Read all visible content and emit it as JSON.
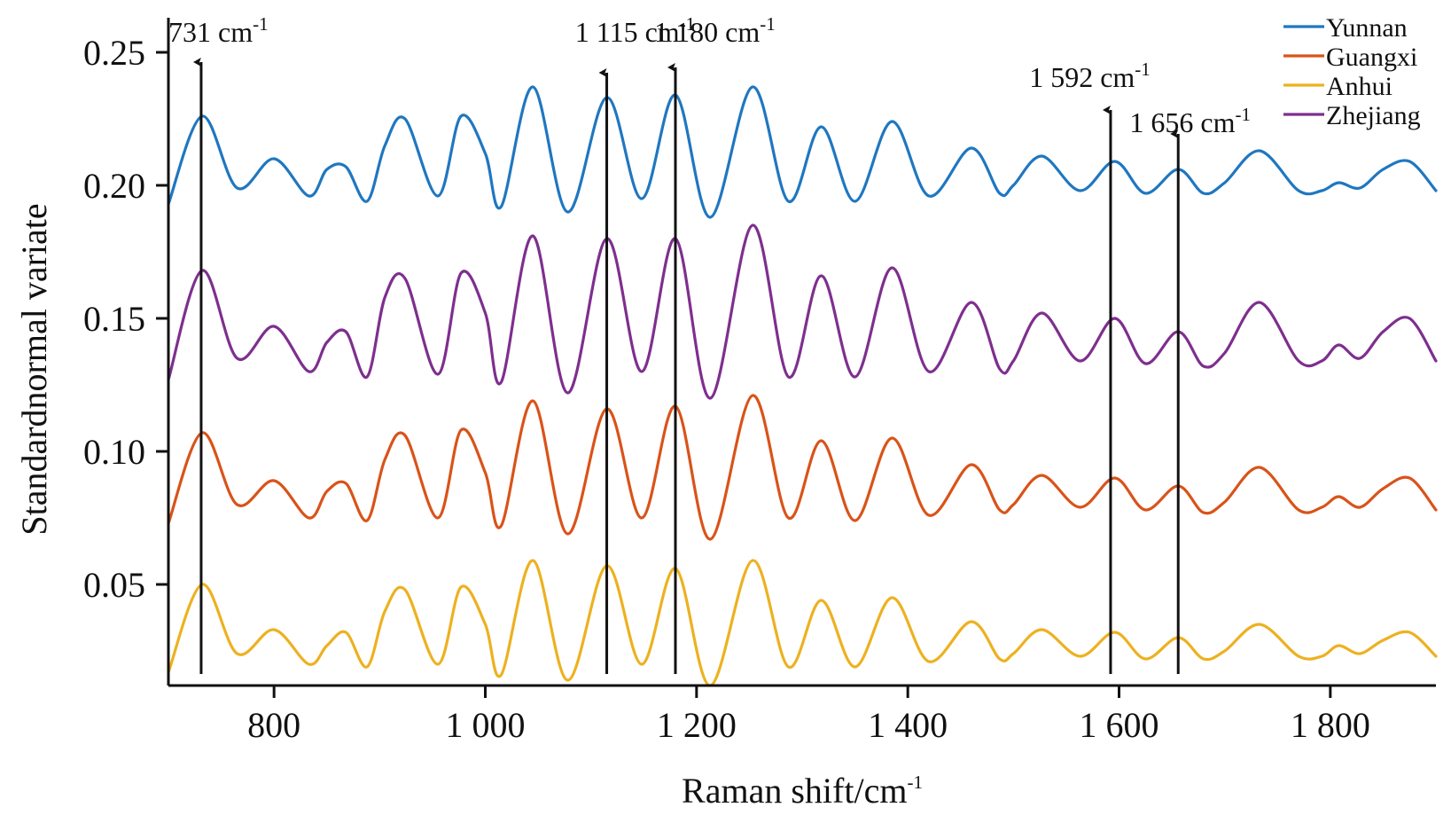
{
  "chart_data": {
    "type": "line",
    "xlabel": "Raman shift/cm",
    "xlabel_sup": "-1",
    "ylabel": "Standardnormal variate",
    "xlim": [
      700,
      1900
    ],
    "ylim": [
      0.012,
      0.263
    ],
    "xticks": [
      800,
      1000,
      1200,
      1400,
      1600,
      1800
    ],
    "xtick_labels": [
      "800",
      "1 000",
      "1 200",
      "1 400",
      "1 600",
      "1 800"
    ],
    "yticks": [
      0.05,
      0.1,
      0.15,
      0.2,
      0.25
    ],
    "ytick_labels": [
      "0.05",
      "0.10",
      "0.15",
      "0.20",
      "0.25"
    ],
    "grid": false,
    "legend_position": "top-right",
    "anchors_x": [
      700,
      732,
      765,
      800,
      833,
      850,
      868,
      888,
      905,
      924,
      955,
      977,
      1000,
      1015,
      1045,
      1078,
      1115,
      1148,
      1180,
      1213,
      1253,
      1287,
      1318,
      1350,
      1385,
      1420,
      1460,
      1487,
      1500,
      1527,
      1563,
      1596,
      1625,
      1656,
      1680,
      1700,
      1733,
      1770,
      1792,
      1808,
      1828,
      1850,
      1875,
      1900
    ],
    "series": [
      {
        "name": "Yunnan",
        "color": "#1f77c0",
        "values": [
          0.193,
          0.226,
          0.199,
          0.21,
          0.196,
          0.206,
          0.207,
          0.194,
          0.215,
          0.225,
          0.196,
          0.226,
          0.212,
          0.192,
          0.237,
          0.19,
          0.233,
          0.195,
          0.234,
          0.188,
          0.237,
          0.194,
          0.222,
          0.194,
          0.224,
          0.196,
          0.214,
          0.197,
          0.2,
          0.211,
          0.198,
          0.209,
          0.197,
          0.206,
          0.197,
          0.201,
          0.213,
          0.198,
          0.198,
          0.201,
          0.199,
          0.206,
          0.209,
          0.198
        ]
      },
      {
        "name": "Guangxi",
        "color": "#d95319",
        "values": [
          0.073,
          0.107,
          0.08,
          0.089,
          0.075,
          0.085,
          0.088,
          0.074,
          0.097,
          0.106,
          0.075,
          0.108,
          0.092,
          0.072,
          0.119,
          0.069,
          0.116,
          0.075,
          0.117,
          0.067,
          0.121,
          0.075,
          0.104,
          0.074,
          0.105,
          0.076,
          0.095,
          0.078,
          0.08,
          0.091,
          0.079,
          0.09,
          0.078,
          0.087,
          0.077,
          0.081,
          0.094,
          0.078,
          0.079,
          0.083,
          0.079,
          0.086,
          0.09,
          0.078
        ]
      },
      {
        "name": "Anhui",
        "color": "#edb120",
        "values": [
          0.017,
          0.05,
          0.024,
          0.033,
          0.02,
          0.027,
          0.032,
          0.019,
          0.04,
          0.048,
          0.02,
          0.049,
          0.035,
          0.016,
          0.059,
          0.014,
          0.057,
          0.02,
          0.056,
          0.012,
          0.059,
          0.019,
          0.044,
          0.019,
          0.045,
          0.021,
          0.036,
          0.022,
          0.024,
          0.033,
          0.023,
          0.032,
          0.022,
          0.03,
          0.022,
          0.025,
          0.035,
          0.023,
          0.023,
          0.027,
          0.024,
          0.029,
          0.032,
          0.023
        ]
      },
      {
        "name": "Zhejiang",
        "color": "#7e2f8e",
        "values": [
          0.127,
          0.168,
          0.135,
          0.147,
          0.13,
          0.141,
          0.145,
          0.128,
          0.158,
          0.165,
          0.129,
          0.167,
          0.152,
          0.126,
          0.181,
          0.122,
          0.18,
          0.13,
          0.18,
          0.12,
          0.185,
          0.128,
          0.166,
          0.128,
          0.169,
          0.13,
          0.156,
          0.131,
          0.134,
          0.152,
          0.134,
          0.15,
          0.133,
          0.145,
          0.132,
          0.137,
          0.156,
          0.134,
          0.134,
          0.14,
          0.135,
          0.145,
          0.15,
          0.134
        ]
      }
    ],
    "annotations": [
      {
        "x": 731,
        "label": "731 cm",
        "sup": "-1",
        "arrow_top": 0.247,
        "label_x": 700,
        "label_y": 0.254
      },
      {
        "x": 1115,
        "label": "1 115 cm",
        "sup": "-1",
        "arrow_top": 0.243,
        "label_x": 1085,
        "label_y": 0.254
      },
      {
        "x": 1180,
        "label": "1 180 cm",
        "sup": "-1",
        "arrow_top": 0.245,
        "label_x": 1160,
        "label_y": 0.254
      },
      {
        "x": 1592,
        "label": "1 592 cm",
        "sup": "-1",
        "arrow_top": 0.229,
        "label_x": 1515,
        "label_y": 0.237
      },
      {
        "x": 1656,
        "label": "1 656 cm",
        "sup": "-1",
        "arrow_top": 0.22,
        "label_x": 1610,
        "label_y": 0.22
      }
    ]
  }
}
